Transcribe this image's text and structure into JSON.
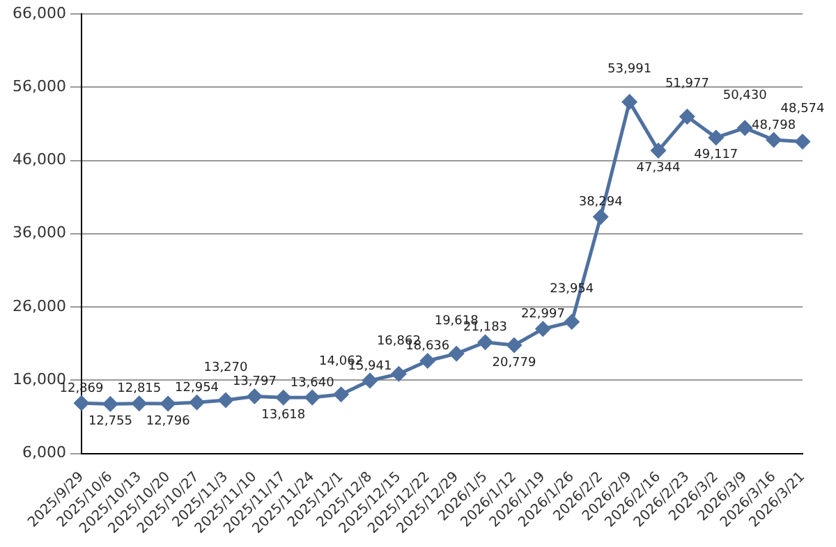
{
  "chart_data": {
    "type": "line",
    "categories": [
      "2025/9/29",
      "2025/10/6",
      "2025/10/13",
      "2025/10/20",
      "2025/10/27",
      "2025/11/3",
      "2025/11/10",
      "2025/11/17",
      "2025/11/24",
      "2025/12/1",
      "2025/12/8",
      "2025/12/15",
      "2025/12/22",
      "2025/12/29",
      "2026/1/5",
      "2026/1/12",
      "2026/1/19",
      "2026/1/26",
      "2026/2/2",
      "2026/2/9",
      "2026/2/16",
      "2026/2/23",
      "2026/3/2",
      "2026/3/9",
      "2026/3/16",
      "2026/3/21"
    ],
    "series": [
      {
        "color": "#4f71a0",
        "values": [
          12869,
          12755,
          12815,
          12796,
          12954,
          13270,
          13797,
          13618,
          13640,
          14062,
          15941,
          16862,
          18636,
          19618,
          21183,
          20779,
          22997,
          23954,
          38294,
          53991,
          47344,
          51977,
          49117,
          50430,
          48798,
          48574
        ],
        "value_labels": [
          "12,869",
          "12,755",
          "12,815",
          "12,796",
          "12,954",
          "13,270",
          "13,797",
          "13,618",
          "13,640",
          "14,062",
          "15,941",
          "16,862",
          "18,636",
          "19,618",
          "21,183",
          "20,779",
          "22,997",
          "23,954",
          "38,294",
          "53,991",
          "47,344",
          "51,977",
          "49,117",
          "50,430",
          "48,798",
          "48,574"
        ]
      }
    ],
    "ylim": [
      6000,
      66000
    ],
    "yticks": [
      {
        "value": 6000,
        "label": "6,000"
      },
      {
        "value": 16000,
        "label": "16,000"
      },
      {
        "value": 26000,
        "label": "26,000"
      },
      {
        "value": 36000,
        "label": "36,000"
      },
      {
        "value": 46000,
        "label": "46,000"
      },
      {
        "value": 56000,
        "label": "56,000"
      },
      {
        "value": 66000,
        "label": "66,000"
      }
    ],
    "grid": "y",
    "marker": "diamond",
    "line_style": "solid",
    "legend": false
  }
}
